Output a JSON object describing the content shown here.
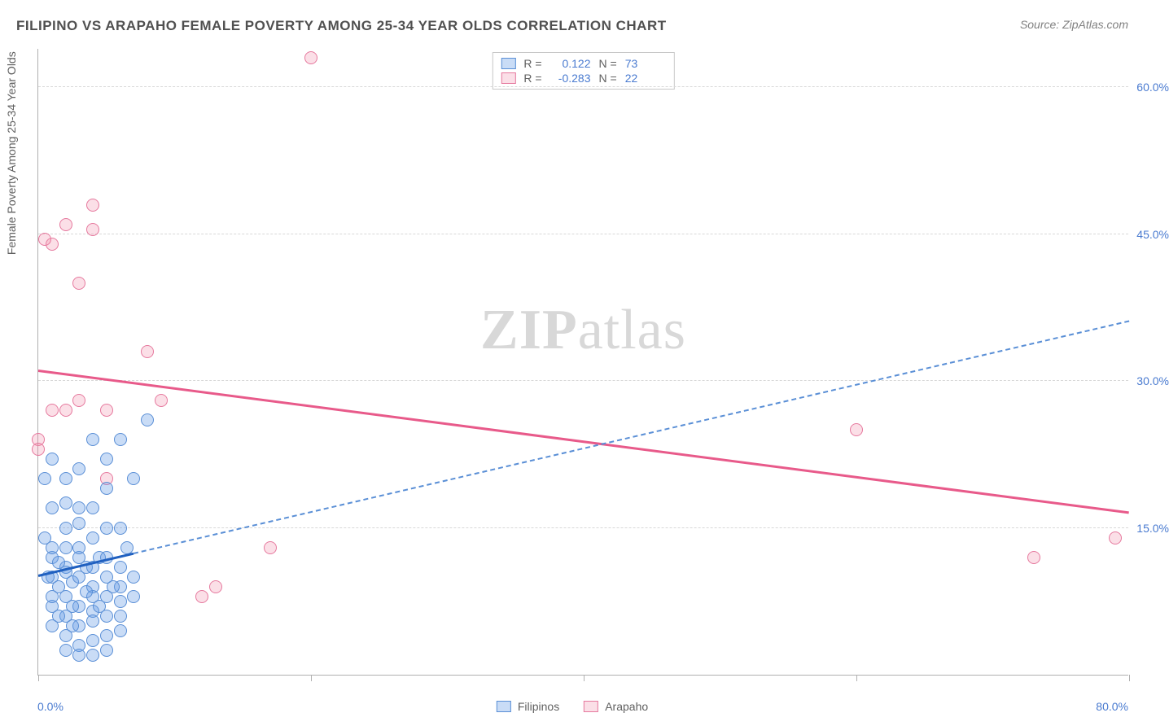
{
  "title": "FILIPINO VS ARAPAHO FEMALE POVERTY AMONG 25-34 YEAR OLDS CORRELATION CHART",
  "source": "Source: ZipAtlas.com",
  "y_axis_title": "Female Poverty Among 25-34 Year Olds",
  "watermark_a": "ZIP",
  "watermark_b": "atlas",
  "chart": {
    "type": "scatter",
    "xlim": [
      0,
      80
    ],
    "ylim": [
      0,
      64
    ],
    "x_ticks": [
      0,
      20,
      40,
      60,
      80
    ],
    "y_grid": [
      15,
      30,
      45,
      60
    ],
    "y_tick_labels": [
      "15.0%",
      "30.0%",
      "45.0%",
      "60.0%"
    ],
    "x_tick_label_left": "0.0%",
    "x_tick_label_right": "80.0%",
    "background_color": "#ffffff",
    "grid_color": "#d8d8d8",
    "axis_color": "#b0b0b0",
    "label_color": "#4a7bd0",
    "point_radius": 8,
    "series": {
      "filipinos": {
        "label": "Filipinos",
        "color_fill": "rgba(100,155,230,0.35)",
        "color_stroke": "#5a8fd6",
        "r_value": "0.122",
        "n_value": "73",
        "trend": {
          "x1": 0,
          "y1": 10,
          "x2": 80,
          "y2": 36,
          "solid_until_x": 7,
          "color_solid": "#2060c0",
          "color_dash": "#5a8fd6"
        },
        "points": [
          [
            0.5,
            14
          ],
          [
            1,
            12
          ],
          [
            1,
            10
          ],
          [
            1.5,
            9
          ],
          [
            2,
            11
          ],
          [
            2,
            8
          ],
          [
            1,
            7
          ],
          [
            2.5,
            9.5
          ],
          [
            3,
            12
          ],
          [
            2,
            13
          ],
          [
            3,
            10
          ],
          [
            1.5,
            11.5
          ],
          [
            4,
            9
          ],
          [
            3,
            7
          ],
          [
            2,
            6
          ],
          [
            4,
            8
          ],
          [
            5,
            10
          ],
          [
            3.5,
            11
          ],
          [
            4.5,
            12
          ],
          [
            2,
            10.5
          ],
          [
            1,
            13
          ],
          [
            5,
            8
          ],
          [
            6,
            9
          ],
          [
            4,
            6.5
          ],
          [
            3,
            13
          ],
          [
            5,
            12
          ],
          [
            6,
            11
          ],
          [
            2.5,
            7
          ],
          [
            3,
            5
          ],
          [
            4,
            5.5
          ],
          [
            5,
            6
          ],
          [
            6,
            7.5
          ],
          [
            7,
            8
          ],
          [
            1,
            5
          ],
          [
            2,
            4
          ],
          [
            3,
            3
          ],
          [
            4,
            3.5
          ],
          [
            5,
            4
          ],
          [
            6,
            4.5
          ],
          [
            3,
            2
          ],
          [
            4,
            2
          ],
          [
            5,
            2.5
          ],
          [
            2,
            2.5
          ],
          [
            6,
            6
          ],
          [
            7,
            10
          ],
          [
            4,
            14
          ],
          [
            5,
            15
          ],
          [
            3,
            15.5
          ],
          [
            1,
            17
          ],
          [
            2,
            17.5
          ],
          [
            4,
            17
          ],
          [
            6,
            15
          ],
          [
            0.5,
            20
          ],
          [
            2,
            20
          ],
          [
            3,
            21
          ],
          [
            1,
            22
          ],
          [
            5,
            22
          ],
          [
            4,
            24
          ],
          [
            6,
            24
          ],
          [
            2,
            15
          ],
          [
            3,
            17
          ],
          [
            5,
            19
          ],
          [
            7,
            20
          ],
          [
            8,
            26
          ],
          [
            1.5,
            6
          ],
          [
            2.5,
            5
          ],
          [
            1,
            8
          ],
          [
            0.7,
            10
          ],
          [
            4.5,
            7
          ],
          [
            5.5,
            9
          ],
          [
            6.5,
            13
          ],
          [
            3.5,
            8.5
          ],
          [
            4,
            11
          ]
        ]
      },
      "arapaho": {
        "label": "Arapaho",
        "color_fill": "rgba(240,140,170,0.28)",
        "color_stroke": "#e6799e",
        "r_value": "-0.283",
        "n_value": "22",
        "trend": {
          "x1": 0,
          "y1": 31,
          "x2": 80,
          "y2": 16.5,
          "color": "#e85a8a"
        },
        "points": [
          [
            0,
            24
          ],
          [
            0,
            23
          ],
          [
            1,
            27
          ],
          [
            2,
            27
          ],
          [
            3,
            28
          ],
          [
            5,
            27
          ],
          [
            2,
            46
          ],
          [
            4,
            48
          ],
          [
            4,
            45.5
          ],
          [
            1,
            44
          ],
          [
            0.5,
            44.5
          ],
          [
            3,
            40
          ],
          [
            8,
            33
          ],
          [
            5,
            20
          ],
          [
            9,
            28
          ],
          [
            13,
            9
          ],
          [
            12,
            8
          ],
          [
            17,
            13
          ],
          [
            20,
            63
          ],
          [
            60,
            25
          ],
          [
            73,
            12
          ],
          [
            79,
            14
          ]
        ]
      }
    }
  },
  "stat_box": {
    "r_label": "R =",
    "n_label": "N ="
  }
}
